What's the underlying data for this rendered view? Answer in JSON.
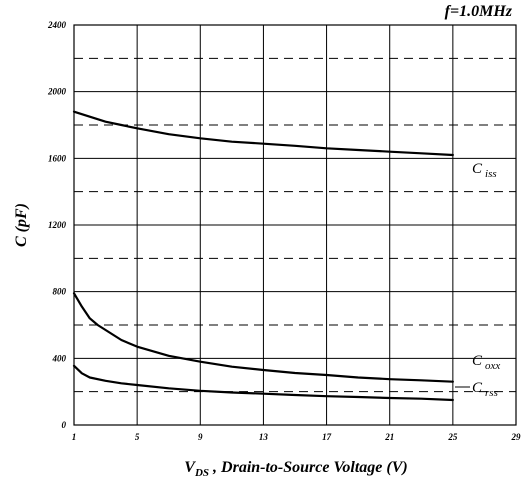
{
  "chart_data": {
    "type": "line",
    "annotation": "f=1.0MHz",
    "xlabel_main": "V",
    "xlabel_sub": "DS",
    "xlabel_rest": " , Drain-to-Source Voltage (V)",
    "ylabel": "C (pF)",
    "xlim": [
      1,
      29
    ],
    "ylim": [
      0,
      2400
    ],
    "x_ticks": [
      1,
      5,
      9,
      13,
      17,
      21,
      25,
      29
    ],
    "y_ticks": [
      0,
      400,
      800,
      1200,
      1600,
      2000,
      2400
    ],
    "y_dashed_gridlines": [
      200,
      600,
      1000,
      1400,
      1800,
      2200
    ],
    "grid": true,
    "series": [
      {
        "name_main": "C",
        "name_sub": "iss",
        "x": [
          1,
          2,
          3,
          4,
          5,
          7,
          9,
          11,
          13,
          15,
          17,
          19,
          21,
          23,
          25
        ],
        "y": [
          1880,
          1850,
          1820,
          1800,
          1780,
          1745,
          1720,
          1700,
          1688,
          1675,
          1660,
          1650,
          1640,
          1630,
          1620
        ]
      },
      {
        "name_main": "C",
        "name_sub": "oxx",
        "x": [
          1,
          1.5,
          2,
          2.5,
          3,
          4,
          5,
          7,
          9,
          11,
          13,
          15,
          17,
          19,
          21,
          23,
          25
        ],
        "y": [
          790,
          710,
          640,
          600,
          570,
          510,
          470,
          415,
          380,
          350,
          330,
          312,
          300,
          285,
          275,
          268,
          260
        ]
      },
      {
        "name_main": "C",
        "name_sub": "rss",
        "x": [
          1,
          1.5,
          2,
          3,
          4,
          5,
          7,
          9,
          11,
          13,
          15,
          17,
          19,
          21,
          23,
          25
        ],
        "y": [
          355,
          310,
          285,
          265,
          250,
          240,
          220,
          205,
          195,
          188,
          180,
          173,
          168,
          162,
          158,
          150
        ]
      }
    ]
  }
}
